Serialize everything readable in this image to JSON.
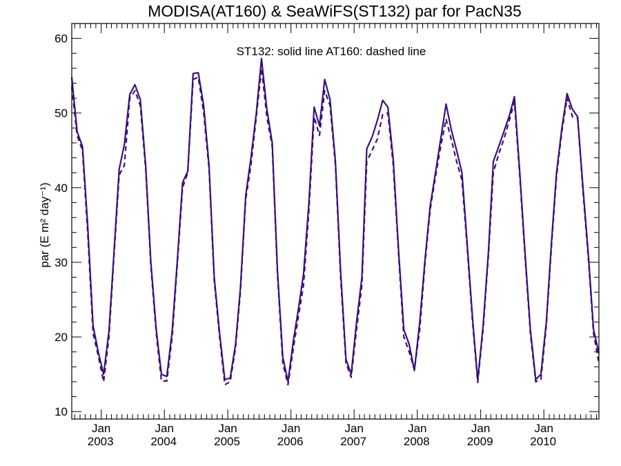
{
  "chart_data": {
    "type": "line",
    "title": "MODISA(AT160) & SeaWiFS(ST132)  par for PacN35",
    "annotation": "ST132: solid line   AT160: dashed line",
    "ylabel": "par (E m² day⁻¹)",
    "xlabel": "",
    "xlim": [
      "2002-07-15",
      "2010-11-15"
    ],
    "ylim": [
      9,
      62
    ],
    "yticks": [
      10,
      20,
      30,
      40,
      50,
      60
    ],
    "xticks": [
      {
        "date": "2003-01-01",
        "month": "Jan",
        "year": "2003"
      },
      {
        "date": "2004-01-01",
        "month": "Jan",
        "year": "2004"
      },
      {
        "date": "2005-01-01",
        "month": "Jan",
        "year": "2005"
      },
      {
        "date": "2006-01-01",
        "month": "Jan",
        "year": "2006"
      },
      {
        "date": "2007-01-01",
        "month": "Jan",
        "year": "2007"
      },
      {
        "date": "2008-01-01",
        "month": "Jan",
        "year": "2008"
      },
      {
        "date": "2009-01-01",
        "month": "Jan",
        "year": "2009"
      },
      {
        "date": "2010-01-01",
        "month": "Jan",
        "year": "2010"
      }
    ],
    "line_color": "#3a1078",
    "series": [
      {
        "style": "solid",
        "points": [
          [
            "2002-07-15",
            54.8
          ],
          [
            "2002-08-15",
            47.5
          ],
          [
            "2002-09-15",
            45.5
          ],
          [
            "2002-10-15",
            35.0
          ],
          [
            "2002-11-15",
            21.5
          ],
          [
            "2002-12-15",
            18.0
          ],
          [
            "2003-01-15",
            15.0
          ],
          [
            "2003-02-15",
            20.8
          ],
          [
            "2003-03-15",
            31.0
          ],
          [
            "2003-04-15",
            42.5
          ],
          [
            "2003-05-15",
            45.8
          ],
          [
            "2003-06-15",
            52.5
          ],
          [
            "2003-07-15",
            53.8
          ],
          [
            "2003-08-15",
            51.8
          ],
          [
            "2003-09-15",
            43.0
          ],
          [
            "2003-10-15",
            30.0
          ],
          [
            "2003-11-15",
            21.0
          ],
          [
            "2003-12-15",
            15.0
          ],
          [
            "2004-01-15",
            14.7
          ],
          [
            "2004-02-15",
            20.8
          ],
          [
            "2004-03-15",
            30.0
          ],
          [
            "2004-04-15",
            40.7
          ],
          [
            "2004-05-15",
            42.2
          ],
          [
            "2004-06-15",
            55.3
          ],
          [
            "2004-07-15",
            55.4
          ],
          [
            "2004-08-15",
            51.0
          ],
          [
            "2004-09-15",
            43.0
          ],
          [
            "2004-10-15",
            28.0
          ],
          [
            "2004-11-15",
            20.5
          ],
          [
            "2004-12-15",
            14.3
          ],
          [
            "2005-01-15",
            14.5
          ],
          [
            "2005-02-15",
            19.0
          ],
          [
            "2005-03-15",
            26.5
          ],
          [
            "2005-04-15",
            39.0
          ],
          [
            "2005-05-15",
            44.0
          ],
          [
            "2005-06-15",
            50.0
          ],
          [
            "2005-07-15",
            57.3
          ],
          [
            "2005-08-15",
            50.5
          ],
          [
            "2005-09-15",
            46.0
          ],
          [
            "2005-10-15",
            29.0
          ],
          [
            "2005-11-15",
            17.3
          ],
          [
            "2005-12-15",
            14.0
          ],
          [
            "2006-01-15",
            19.5
          ],
          [
            "2006-02-15",
            24.0
          ],
          [
            "2006-03-15",
            28.5
          ],
          [
            "2006-04-15",
            38.0
          ],
          [
            "2006-05-15",
            50.8
          ],
          [
            "2006-06-15",
            48.3
          ],
          [
            "2006-07-15",
            54.5
          ],
          [
            "2006-08-15",
            51.8
          ],
          [
            "2006-09-15",
            43.5
          ],
          [
            "2006-10-15",
            28.8
          ],
          [
            "2006-11-15",
            17.0
          ],
          [
            "2006-12-15",
            15.0
          ],
          [
            "2007-01-15",
            22.0
          ],
          [
            "2007-02-15",
            28.0
          ],
          [
            "2007-03-15",
            45.2
          ],
          [
            "2007-04-15",
            46.8
          ],
          [
            "2007-05-15",
            49.0
          ],
          [
            "2007-06-15",
            51.7
          ],
          [
            "2007-07-15",
            50.8
          ],
          [
            "2007-08-15",
            43.8
          ],
          [
            "2007-09-15",
            31.5
          ],
          [
            "2007-10-15",
            21.0
          ],
          [
            "2007-11-15",
            19.0
          ],
          [
            "2007-12-15",
            15.5
          ],
          [
            "2008-01-15",
            22.0
          ],
          [
            "2008-02-15",
            30.5
          ],
          [
            "2008-03-15",
            37.5
          ],
          [
            "2008-04-15",
            42.0
          ],
          [
            "2008-05-15",
            46.5
          ],
          [
            "2008-06-15",
            51.2
          ],
          [
            "2008-07-15",
            47.8
          ],
          [
            "2008-08-15",
            45.0
          ],
          [
            "2008-09-15",
            42.0
          ],
          [
            "2008-10-15",
            32.5
          ],
          [
            "2008-11-15",
            22.5
          ],
          [
            "2008-12-15",
            14.2
          ],
          [
            "2009-01-15",
            21.5
          ],
          [
            "2009-02-15",
            31.5
          ],
          [
            "2009-03-15",
            43.5
          ],
          [
            "2009-04-15",
            45.5
          ],
          [
            "2009-05-15",
            47.5
          ],
          [
            "2009-06-15",
            49.6
          ],
          [
            "2009-07-15",
            52.2
          ],
          [
            "2009-08-15",
            42.0
          ],
          [
            "2009-09-15",
            31.0
          ],
          [
            "2009-10-15",
            21.0
          ],
          [
            "2009-11-15",
            14.3
          ],
          [
            "2009-12-15",
            15.0
          ],
          [
            "2010-01-15",
            22.0
          ],
          [
            "2010-02-15",
            33.0
          ],
          [
            "2010-03-15",
            42.0
          ],
          [
            "2010-04-15",
            48.0
          ],
          [
            "2010-05-15",
            52.6
          ],
          [
            "2010-06-15",
            50.5
          ],
          [
            "2010-07-15",
            49.5
          ],
          [
            "2010-08-15",
            40.0
          ],
          [
            "2010-09-15",
            31.0
          ],
          [
            "2010-10-15",
            21.0
          ],
          [
            "2010-11-15",
            17.8
          ]
        ]
      },
      {
        "style": "dashed",
        "points": [
          [
            "2002-07-15",
            53.5
          ],
          [
            "2002-08-15",
            47.0
          ],
          [
            "2002-09-15",
            45.0
          ],
          [
            "2002-10-15",
            34.0
          ],
          [
            "2002-11-15",
            20.5
          ],
          [
            "2002-12-15",
            17.5
          ],
          [
            "2003-01-15",
            14.0
          ],
          [
            "2003-02-15",
            20.0
          ],
          [
            "2003-03-15",
            30.5
          ],
          [
            "2003-04-15",
            41.7
          ],
          [
            "2003-05-15",
            43.0
          ],
          [
            "2003-06-15",
            52.0
          ],
          [
            "2003-07-15",
            53.0
          ],
          [
            "2003-08-15",
            51.0
          ],
          [
            "2003-09-15",
            42.5
          ],
          [
            "2003-10-15",
            29.5
          ],
          [
            "2003-11-15",
            20.5
          ],
          [
            "2003-12-15",
            14.1
          ],
          [
            "2004-01-15",
            14.1
          ],
          [
            "2004-02-15",
            20.0
          ],
          [
            "2004-03-15",
            29.5
          ],
          [
            "2004-04-15",
            40.0
          ],
          [
            "2004-05-15",
            42.0
          ],
          [
            "2004-06-15",
            54.5
          ],
          [
            "2004-07-15",
            54.8
          ],
          [
            "2004-08-15",
            50.0
          ],
          [
            "2004-09-15",
            42.5
          ],
          [
            "2004-10-15",
            27.5
          ],
          [
            "2004-11-15",
            20.0
          ],
          [
            "2004-12-15",
            13.6
          ],
          [
            "2005-01-15",
            14.0
          ],
          [
            "2005-02-15",
            18.5
          ],
          [
            "2005-03-15",
            26.0
          ],
          [
            "2005-04-15",
            38.5
          ],
          [
            "2005-05-15",
            43.0
          ],
          [
            "2005-06-15",
            49.5
          ],
          [
            "2005-07-15",
            56.0
          ],
          [
            "2005-08-15",
            49.5
          ],
          [
            "2005-09-15",
            45.5
          ],
          [
            "2005-10-15",
            28.5
          ],
          [
            "2005-11-15",
            16.5
          ],
          [
            "2005-12-15",
            13.6
          ],
          [
            "2006-01-15",
            18.5
          ],
          [
            "2006-02-15",
            23.0
          ],
          [
            "2006-03-15",
            27.0
          ],
          [
            "2006-04-15",
            37.0
          ],
          [
            "2006-05-15",
            49.5
          ],
          [
            "2006-06-15",
            47.0
          ],
          [
            "2006-07-15",
            53.0
          ],
          [
            "2006-08-15",
            51.0
          ],
          [
            "2006-09-15",
            43.0
          ],
          [
            "2006-10-15",
            28.0
          ],
          [
            "2006-11-15",
            16.5
          ],
          [
            "2006-12-15",
            14.6
          ],
          [
            "2007-01-15",
            21.0
          ],
          [
            "2007-02-15",
            27.0
          ],
          [
            "2007-03-15",
            43.5
          ],
          [
            "2007-04-15",
            45.0
          ],
          [
            "2007-05-15",
            46.5
          ],
          [
            "2007-06-15",
            49.8
          ],
          [
            "2007-07-15",
            50.0
          ],
          [
            "2007-08-15",
            43.0
          ],
          [
            "2007-09-15",
            31.0
          ],
          [
            "2007-10-15",
            20.0
          ],
          [
            "2007-11-15",
            18.0
          ],
          [
            "2007-12-15",
            15.6
          ],
          [
            "2008-01-15",
            21.0
          ],
          [
            "2008-02-15",
            30.0
          ],
          [
            "2008-03-15",
            37.0
          ],
          [
            "2008-04-15",
            41.5
          ],
          [
            "2008-05-15",
            45.5
          ],
          [
            "2008-06-15",
            49.2
          ],
          [
            "2008-07-15",
            46.5
          ],
          [
            "2008-08-15",
            43.5
          ],
          [
            "2008-09-15",
            41.0
          ],
          [
            "2008-10-15",
            32.0
          ],
          [
            "2008-11-15",
            22.0
          ],
          [
            "2008-12-15",
            13.9
          ],
          [
            "2009-01-15",
            21.0
          ],
          [
            "2009-02-15",
            31.0
          ],
          [
            "2009-03-15",
            42.0
          ],
          [
            "2009-04-15",
            44.5
          ],
          [
            "2009-05-15",
            46.5
          ],
          [
            "2009-06-15",
            49.0
          ],
          [
            "2009-07-15",
            51.5
          ],
          [
            "2009-08-15",
            41.5
          ],
          [
            "2009-09-15",
            30.5
          ],
          [
            "2009-10-15",
            20.5
          ],
          [
            "2009-11-15",
            14.0
          ],
          [
            "2009-12-15",
            14.3
          ],
          [
            "2010-01-15",
            21.5
          ],
          [
            "2010-02-15",
            32.5
          ],
          [
            "2010-03-15",
            41.5
          ],
          [
            "2010-04-15",
            47.5
          ],
          [
            "2010-05-15",
            52.0
          ],
          [
            "2010-06-15",
            49.5
          ],
          [
            "2010-07-15",
            49.3
          ],
          [
            "2010-08-15",
            39.5
          ],
          [
            "2010-09-15",
            30.5
          ],
          [
            "2010-10-15",
            20.5
          ],
          [
            "2010-11-15",
            16.5
          ]
        ]
      }
    ]
  }
}
